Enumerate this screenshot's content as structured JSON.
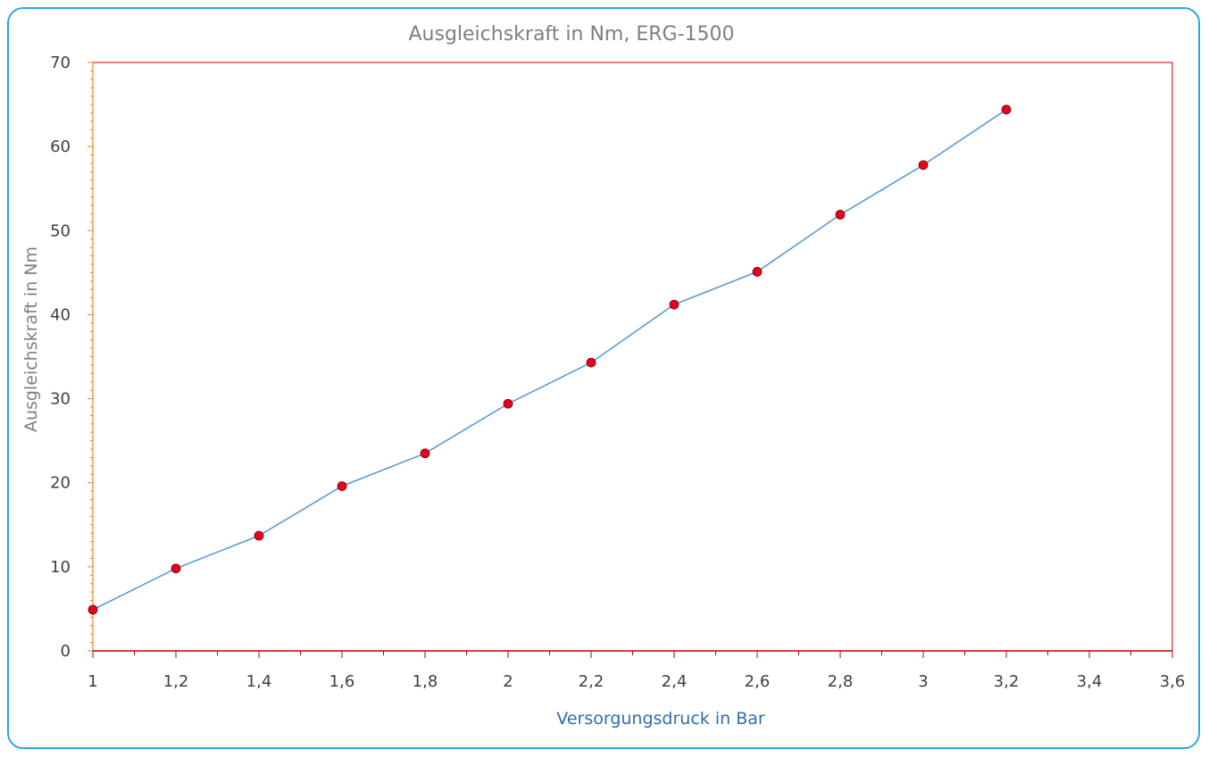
{
  "chart_data": {
    "type": "line",
    "title": "Ausgleichskraft in Nm, ERG-1500",
    "xlabel": "Versorgungsdruck in Bar",
    "ylabel": "Ausgleichskraft in Nm",
    "xlim": [
      1,
      3.6
    ],
    "ylim": [
      0,
      70
    ],
    "x_ticks": [
      "1",
      "1,2",
      "1,4",
      "1,6",
      "1,8",
      "2",
      "2,2",
      "2,4",
      "2,6",
      "2,8",
      "3",
      "3,2",
      "3,4",
      "3,6"
    ],
    "y_ticks": [
      "0",
      "10",
      "20",
      "30",
      "40",
      "50",
      "60",
      "70"
    ],
    "grid": false,
    "legend": "none",
    "series": [
      {
        "x": [
          1,
          1.2,
          1.4,
          1.6,
          1.8,
          2.0,
          2.2,
          2.4,
          2.6,
          2.8,
          3.0,
          3.2
        ],
        "y": [
          4.9,
          9.8,
          13.7,
          19.6,
          23.5,
          29.4,
          34.3,
          41.2,
          45.1,
          51.9,
          57.8,
          64.4
        ],
        "line_color": "#5b9bd5",
        "marker_color": "#e8001c"
      }
    ],
    "colors": {
      "frame_border": "#29a8e0",
      "axis": "#c00000",
      "title": "#7f7f7f",
      "xlabel": "#2e6fab"
    }
  }
}
